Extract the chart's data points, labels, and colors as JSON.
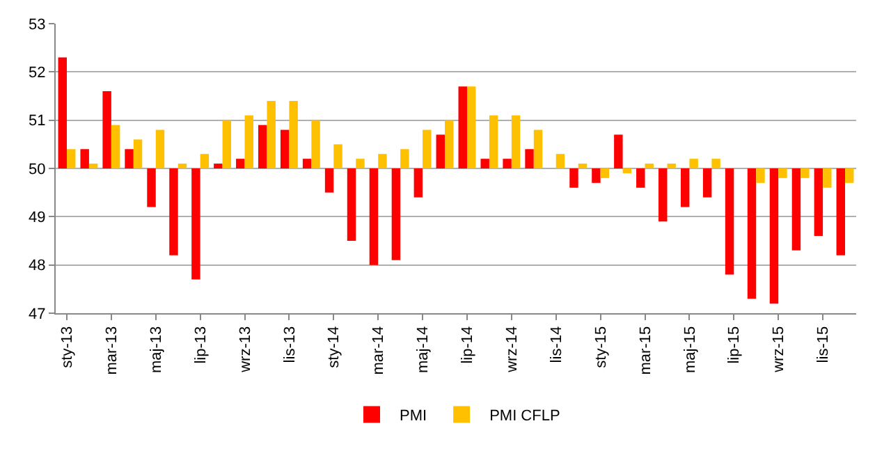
{
  "chart_data": {
    "type": "bar",
    "categories": [
      "sty-13",
      null,
      "mar-13",
      null,
      "maj-13",
      null,
      "lip-13",
      null,
      "wrz-13",
      null,
      "lis-13",
      null,
      "sty-14",
      null,
      "mar-14",
      null,
      "maj-14",
      null,
      "lip-14",
      null,
      "wrz-14",
      null,
      "lis-14",
      null,
      "sty-15",
      null,
      "mar-15",
      null,
      "maj-15",
      null,
      "lip-15",
      null,
      "wrz-15",
      null,
      "lis-15",
      null
    ],
    "series": [
      {
        "name": "PMI",
        "color": "#ff0000",
        "base": [
          50,
          50,
          50,
          50,
          50,
          50,
          50,
          50,
          50,
          50,
          50,
          50,
          50,
          50,
          50,
          50,
          50,
          50,
          50,
          50,
          50,
          50,
          null,
          50,
          50,
          50,
          50,
          50,
          50,
          50,
          50,
          50,
          50,
          50,
          50,
          50
        ],
        "values": [
          2.3,
          0.4,
          1.6,
          0.4,
          -0.8,
          -1.8,
          -2.3,
          0.1,
          0.2,
          0.9,
          0.8,
          0.2,
          -0.5,
          -1.5,
          -2.0,
          -1.9,
          -0.6,
          0.7,
          1.7,
          0.2,
          0.2,
          0.4,
          null,
          -0.4,
          -0.3,
          0.7,
          -0.4,
          -1.1,
          -0.8,
          -0.6,
          -2.2,
          -2.7,
          -2.8,
          -1.7,
          -1.4,
          -1.8
        ]
      },
      {
        "name": "PMI CFLP",
        "color": "#ffc000",
        "base": [
          50,
          50,
          50,
          50,
          50,
          50,
          50,
          50,
          50,
          50,
          50,
          50,
          50,
          50,
          50,
          50,
          50,
          50,
          50,
          50,
          50,
          50,
          50,
          50,
          50,
          50,
          50,
          50,
          50,
          50,
          null,
          50,
          50,
          50,
          50,
          50
        ],
        "values": [
          0.4,
          0.1,
          0.9,
          0.6,
          0.8,
          0.1,
          0.3,
          1.0,
          1.1,
          1.4,
          1.4,
          1.0,
          0.5,
          0.2,
          0.3,
          0.4,
          0.8,
          1.0,
          1.7,
          1.1,
          1.1,
          0.8,
          0.3,
          0.1,
          -0.2,
          -0.1,
          0.1,
          0.1,
          0.2,
          0.2,
          null,
          -0.3,
          -0.2,
          -0.2,
          -0.4,
          -0.3
        ]
      }
    ],
    "ylim": [
      47,
      53
    ],
    "yticks": [
      47,
      48,
      49,
      50,
      51,
      52,
      53
    ],
    "grid": "y",
    "legend": "bottom"
  }
}
